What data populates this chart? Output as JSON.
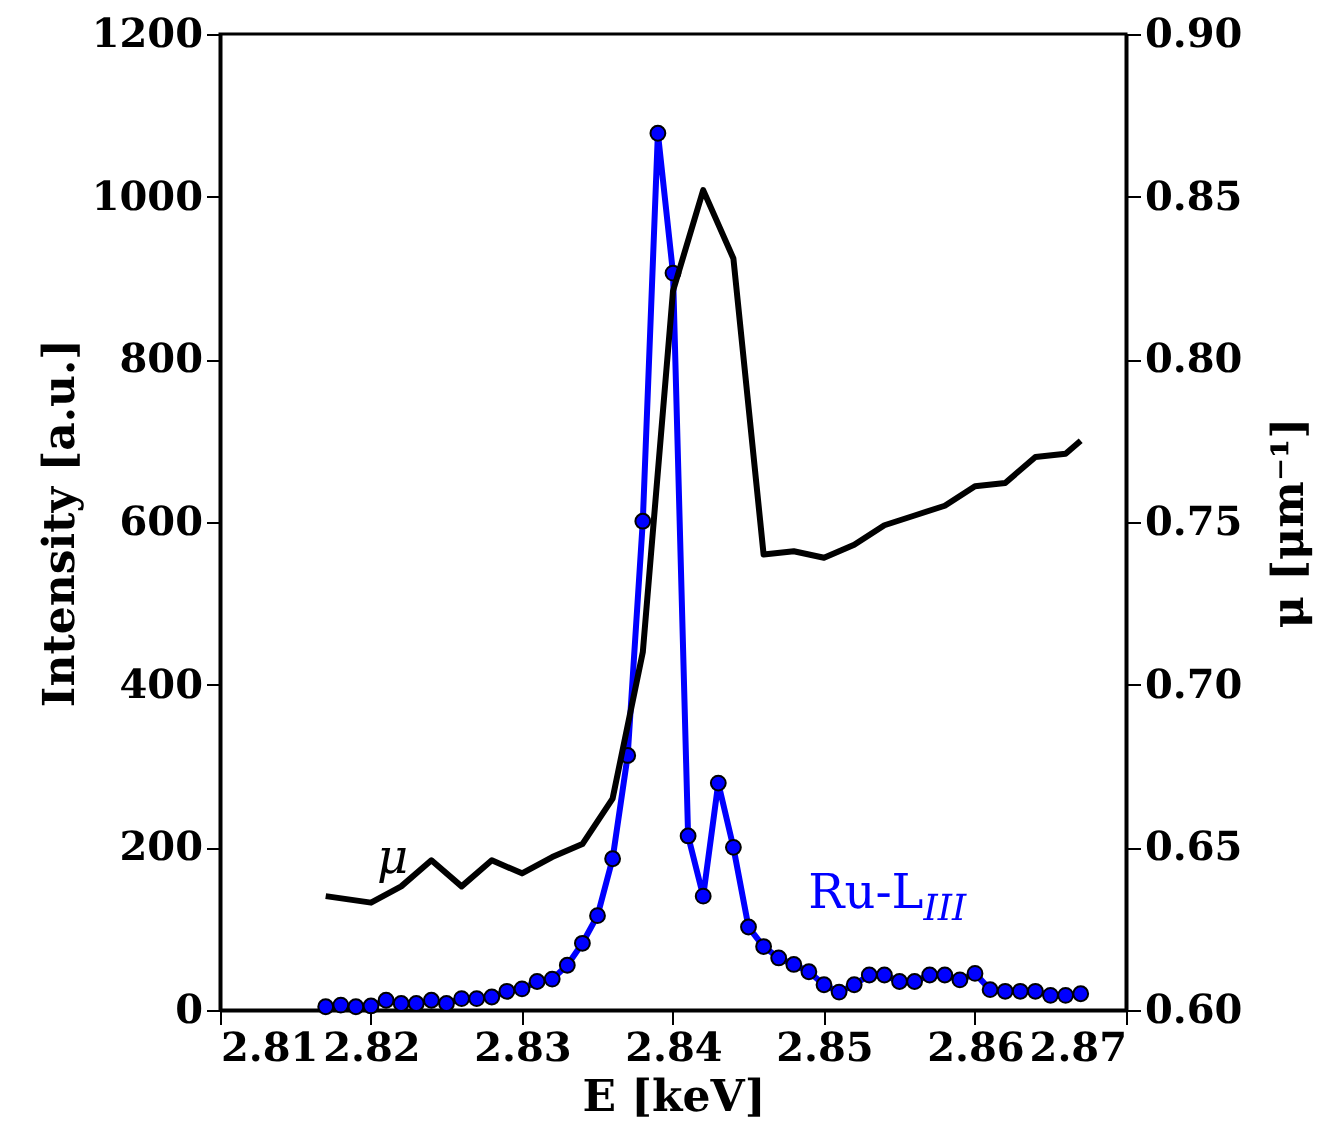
{
  "chart_data": {
    "type": "line",
    "xlabel": "E [keV]",
    "ylabel": "Intensity [a.u.]",
    "y2label": "μ [μm⁻¹]",
    "xlim": [
      2.81,
      2.87
    ],
    "xticks": [
      2.81,
      2.82,
      2.83,
      2.84,
      2.85,
      2.86,
      2.87
    ],
    "ylim": [
      0,
      1200
    ],
    "yticks": [
      0,
      200,
      400,
      600,
      800,
      1000,
      1200
    ],
    "y2lim": [
      0.6,
      0.9
    ],
    "y2ticks": [
      {
        "value": 0.6,
        "label": "0.60"
      },
      0.65,
      {
        "value": 0.7,
        "label": "0.70"
      },
      0.75,
      {
        "value": 0.8,
        "label": "0.80"
      },
      0.85,
      {
        "value": 0.9,
        "label": "0.90"
      }
    ],
    "grid": false,
    "line_style": "solid",
    "series": [
      {
        "name": "Ru-L$_{III}$",
        "color": "#0000ff",
        "marker": "circle",
        "x": [
          2.817,
          2.818,
          2.819,
          2.82,
          2.821,
          2.822,
          2.823,
          2.824,
          2.825,
          2.826,
          2.827,
          2.828,
          2.829,
          2.83,
          2.831,
          2.832,
          2.833,
          2.834,
          2.835,
          2.836,
          2.837,
          2.838,
          2.839,
          2.84,
          2.841,
          2.842,
          2.843,
          2.844,
          2.845,
          2.846,
          2.847,
          2.848,
          2.849,
          2.85,
          2.851,
          2.852,
          2.853,
          2.854,
          2.855,
          2.856,
          2.857,
          2.858,
          2.859,
          2.86,
          2.861,
          2.862,
          2.863,
          2.864,
          2.865,
          2.866,
          2.867
        ],
        "values": [
          4,
          6,
          4,
          5,
          12,
          8,
          8,
          12,
          8,
          14,
          14,
          16,
          23,
          26,
          35,
          38,
          55,
          82,
          116,
          186,
          313,
          601,
          1078,
          906,
          214,
          140,
          279,
          200,
          102,
          78,
          64,
          56,
          47,
          31,
          22,
          31,
          43,
          43,
          35,
          35,
          43,
          43,
          37,
          45,
          25,
          23,
          23,
          23,
          18,
          18,
          20
        ]
      },
      {
        "name": "μ",
        "color": "#000000",
        "marker": "none",
        "axis": "y2",
        "x": [
          2.817,
          2.82,
          2.822,
          2.824,
          2.826,
          2.828,
          2.83,
          2.832,
          2.834,
          2.836,
          2.838,
          2.84,
          2.842,
          2.844,
          2.846,
          2.848,
          2.85,
          2.852,
          2.854,
          2.856,
          2.858,
          2.86,
          2.862,
          2.864,
          2.866,
          2.867
        ],
        "values": [
          0.635,
          0.633,
          0.638,
          0.646,
          0.638,
          0.646,
          0.642,
          0.647,
          0.651,
          0.665,
          0.71,
          0.821,
          0.852,
          0.831,
          0.74,
          0.741,
          0.739,
          0.743,
          0.749,
          0.752,
          0.755,
          0.761,
          0.762,
          0.77,
          0.771,
          0.775
        ]
      }
    ]
  }
}
